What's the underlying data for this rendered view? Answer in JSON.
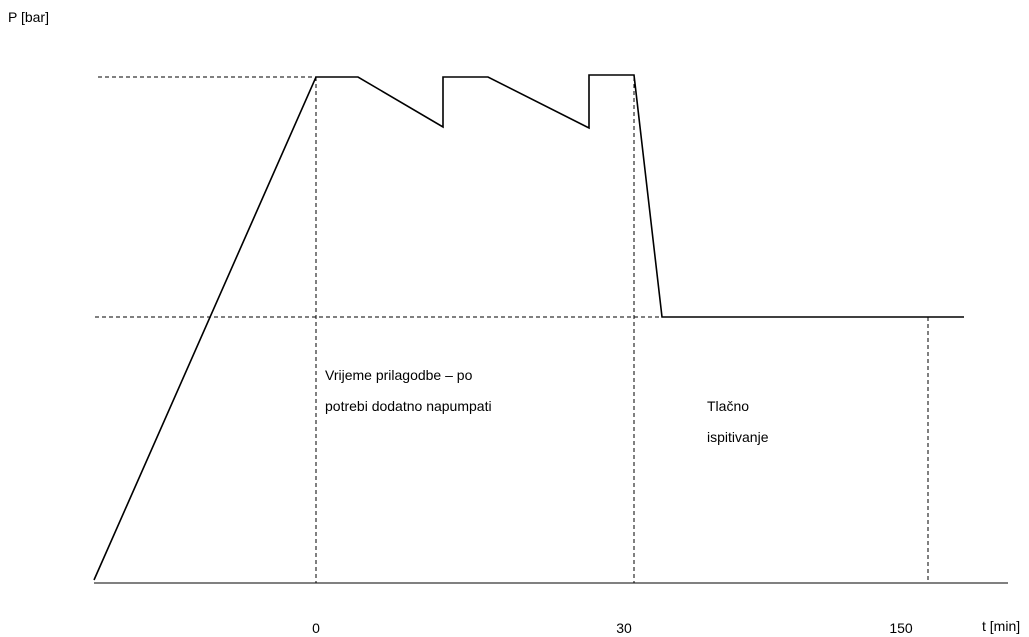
{
  "chart_data": {
    "type": "line",
    "ylabel": "P [bar]",
    "xlabel": "t [min]",
    "x_tick_labels": [
      "0",
      "30",
      "150"
    ],
    "annotations": [
      [
        "Vrijeme prilagodbe – po",
        "potrebi dodatno napumpati"
      ],
      [
        "Tlačno",
        "ispitivanje"
      ]
    ],
    "colors": {
      "line": "#000000",
      "guides": "#000000"
    }
  }
}
